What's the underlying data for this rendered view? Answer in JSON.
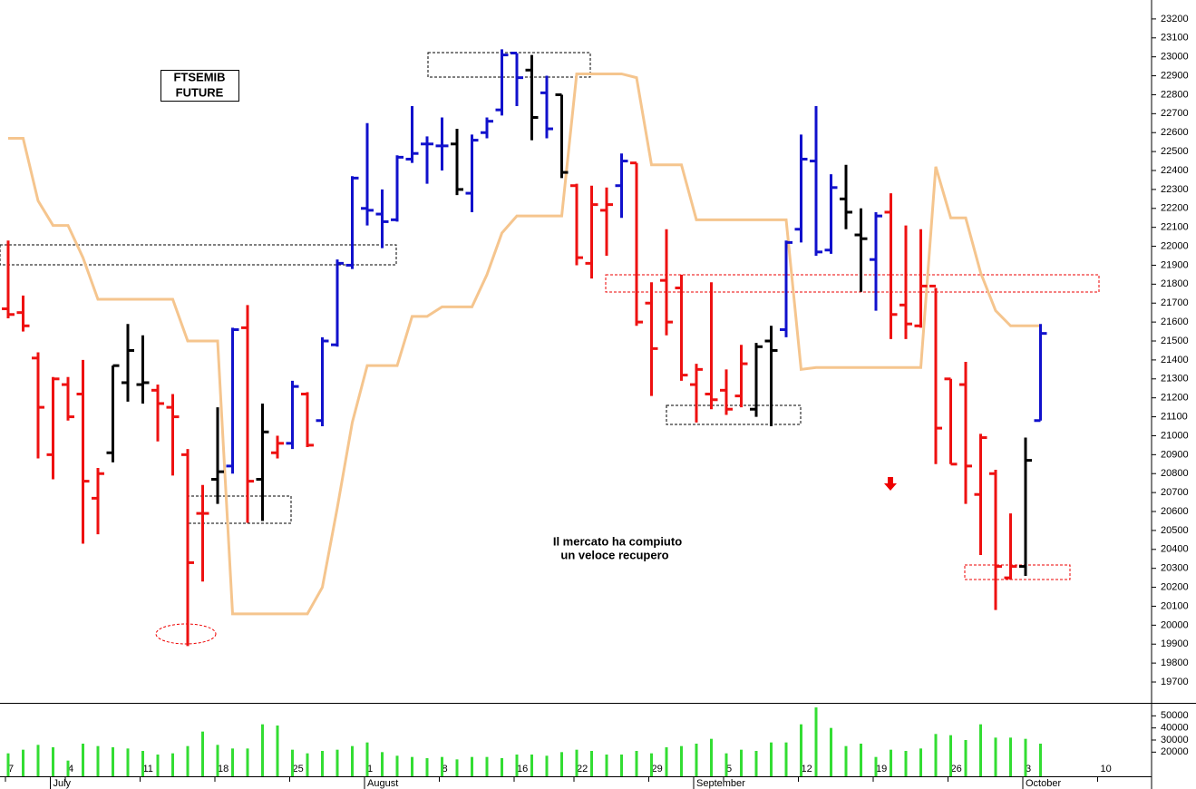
{
  "chart_data": {
    "type": "ohlc",
    "title_lines": [
      "FTSEMIB",
      "FUTURE"
    ],
    "annotation_lines": [
      "Il mercato ha compiuto",
      "un veloce recupero"
    ],
    "categories": [
      "7",
      null,
      null,
      null,
      "4",
      null,
      null,
      null,
      null,
      "11",
      null,
      null,
      null,
      null,
      "18",
      null,
      null,
      null,
      null,
      "25",
      null,
      null,
      null,
      null,
      "1",
      null,
      null,
      null,
      null,
      "8",
      null,
      null,
      null,
      null,
      "16",
      null,
      null,
      null,
      "22",
      null,
      null,
      null,
      null,
      "29",
      null,
      null,
      null,
      null,
      "5",
      null,
      null,
      null,
      null,
      "12",
      null,
      null,
      null,
      null,
      "19",
      null,
      null,
      null,
      null,
      "26",
      null,
      null,
      null,
      null,
      "3",
      null,
      null,
      null,
      null,
      "10",
      null,
      null,
      null
    ],
    "months": [
      null,
      null,
      null,
      "July",
      null,
      null,
      null,
      null,
      null,
      null,
      null,
      null,
      null,
      null,
      null,
      null,
      null,
      null,
      null,
      null,
      null,
      null,
      null,
      null,
      "August",
      null,
      null,
      null,
      null,
      null,
      null,
      null,
      null,
      null,
      null,
      null,
      null,
      null,
      null,
      null,
      null,
      null,
      null,
      null,
      null,
      null,
      "September",
      null,
      null,
      null,
      null,
      null,
      null,
      null,
      null,
      null,
      null,
      null,
      null,
      null,
      null,
      null,
      null,
      null,
      null,
      null,
      null,
      null,
      "October",
      null,
      null,
      null,
      null,
      null,
      null,
      null,
      null
    ],
    "open": [
      21670,
      21650,
      21410,
      20900,
      21270,
      21220,
      20670,
      20910,
      21280,
      21270,
      21240,
      21150,
      20900,
      20590,
      20770,
      20840,
      21570,
      20770,
      20910,
      20960,
      21220,
      21080,
      21480,
      21900,
      22200,
      22170,
      22140,
      22460,
      22540,
      22530,
      22540,
      22280,
      22600,
      22720,
      23020,
      22930,
      22810,
      22800,
      22320,
      21910,
      22190,
      22320,
      22440,
      21700,
      21820,
      21780,
      21270,
      21220,
      21240,
      21210,
      21140,
      21500,
      21560,
      22090,
      22450,
      21980,
      22250,
      22060,
      21930,
      22180,
      21690,
      21580,
      21790,
      21300,
      21270,
      20690,
      20800,
      20250,
      20310,
      21080,
      null,
      null,
      null,
      null,
      null,
      null,
      null
    ],
    "high": [
      22030,
      21740,
      21440,
      21310,
      21310,
      21400,
      20830,
      21370,
      21590,
      21530,
      21270,
      21220,
      20930,
      20740,
      21150,
      21570,
      21690,
      21170,
      21000,
      21290,
      21230,
      21520,
      21930,
      22370,
      22650,
      22300,
      22480,
      22740,
      22580,
      22680,
      22620,
      22590,
      22680,
      23040,
      23020,
      23010,
      22900,
      22800,
      22330,
      22320,
      22310,
      22490,
      22440,
      21810,
      22090,
      21850,
      21380,
      21810,
      21350,
      21480,
      21490,
      21580,
      22030,
      22590,
      22740,
      22380,
      22430,
      22200,
      22180,
      22280,
      22110,
      22090,
      21780,
      21300,
      21390,
      21010,
      20820,
      20590,
      20990,
      21590,
      null,
      null,
      null,
      null,
      null,
      null,
      null
    ],
    "low": [
      21620,
      21550,
      20880,
      20770,
      21080,
      20430,
      20480,
      20860,
      21180,
      21170,
      20970,
      20790,
      19890,
      20230,
      20640,
      20800,
      20540,
      20550,
      20880,
      20930,
      20940,
      21050,
      21470,
      21880,
      22110,
      21990,
      22130,
      22440,
      22330,
      22400,
      22270,
      22180,
      22570,
      22690,
      22740,
      22560,
      22570,
      22360,
      21900,
      21830,
      21950,
      22150,
      21580,
      21210,
      21530,
      21290,
      21070,
      21140,
      21110,
      21150,
      21100,
      21050,
      21520,
      22020,
      21950,
      21960,
      22090,
      21760,
      21660,
      21510,
      21510,
      21570,
      20850,
      20850,
      20640,
      20370,
      20080,
      20240,
      20260,
      21080,
      null,
      null,
      null,
      null,
      null,
      null,
      null
    ],
    "close": [
      21640,
      21580,
      21150,
      21300,
      21100,
      20760,
      20800,
      21370,
      21450,
      21280,
      21170,
      21100,
      20330,
      20590,
      20810,
      21560,
      20760,
      21020,
      20960,
      21260,
      20950,
      21500,
      21910,
      22360,
      22190,
      22130,
      22470,
      22490,
      22540,
      22530,
      22300,
      22560,
      22660,
      23010,
      22890,
      22680,
      22620,
      22390,
      21940,
      22220,
      22220,
      22450,
      21600,
      21460,
      21600,
      21320,
      21350,
      21190,
      21140,
      21380,
      21470,
      21450,
      22020,
      22460,
      21970,
      22310,
      22180,
      22040,
      22160,
      21640,
      21590,
      21790,
      21040,
      20850,
      20840,
      20990,
      20310,
      20310,
      20870,
      21540,
      null,
      null,
      null,
      null,
      null,
      null,
      null
    ],
    "colors": [
      "#ee1111",
      "#ee1111",
      "#ee1111",
      "#ee1111",
      "#ee1111",
      "#ee1111",
      "#ee1111",
      "#000000",
      "#000000",
      "#000000",
      "#ee1111",
      "#ee1111",
      "#ee1111",
      "#ee1111",
      "#000000",
      "#1111cc",
      "#ee1111",
      "#000000",
      "#ee1111",
      "#1111cc",
      "#ee1111",
      "#1111cc",
      "#1111cc",
      "#1111cc",
      "#1111cc",
      "#1111cc",
      "#1111cc",
      "#1111cc",
      "#1111cc",
      "#1111cc",
      "#000000",
      "#1111cc",
      "#1111cc",
      "#1111cc",
      "#1111cc",
      "#000000",
      "#1111cc",
      "#000000",
      "#ee1111",
      "#ee1111",
      "#ee1111",
      "#1111cc",
      "#ee1111",
      "#ee1111",
      "#ee1111",
      "#ee1111",
      "#ee1111",
      "#ee1111",
      "#ee1111",
      "#ee1111",
      "#000000",
      "#000000",
      "#1111cc",
      "#1111cc",
      "#1111cc",
      "#1111cc",
      "#000000",
      "#000000",
      "#1111cc",
      "#ee1111",
      "#ee1111",
      "#ee1111",
      "#ee1111",
      "#ee1111",
      "#ee1111",
      "#ee1111",
      "#ee1111",
      "#ee1111",
      "#000000",
      "#1111cc",
      null,
      null,
      null,
      null,
      null,
      null,
      null
    ],
    "line": {
      "color": "#f5c58e",
      "values": [
        22570,
        22570,
        22240,
        22110,
        22110,
        21940,
        21720,
        21720,
        21720,
        21720,
        21720,
        21720,
        21500,
        21500,
        21500,
        20060,
        20060,
        20060,
        20060,
        20060,
        20060,
        20200,
        20620,
        21070,
        21370,
        21370,
        21370,
        21630,
        21630,
        21680,
        21680,
        21680,
        21850,
        22070,
        22160,
        22160,
        22160,
        22160,
        22910,
        22910,
        22910,
        22910,
        22890,
        22430,
        22430,
        22430,
        22140,
        22140,
        22140,
        22140,
        22140,
        22140,
        22140,
        21350,
        21360,
        21360,
        21360,
        21360,
        21360,
        21360,
        21360,
        21360,
        22420,
        22150,
        22150,
        21860,
        21660,
        21580,
        21580,
        21580,
        null,
        null,
        null,
        null,
        null,
        null,
        null
      ]
    },
    "volume": {
      "color": "#33dd33",
      "values": [
        19000,
        22000,
        26000,
        24000,
        13000,
        27000,
        25000,
        24000,
        23000,
        21000,
        18000,
        19000,
        25000,
        37000,
        26000,
        23000,
        23000,
        43000,
        42000,
        22000,
        19000,
        21000,
        22000,
        25000,
        28000,
        20000,
        17000,
        16000,
        15000,
        16000,
        14000,
        16000,
        16000,
        15000,
        18000,
        18000,
        17000,
        20000,
        22000,
        21000,
        18000,
        18000,
        21000,
        19000,
        24000,
        25000,
        27000,
        31000,
        19000,
        22000,
        21000,
        28000,
        28000,
        43000,
        57000,
        40000,
        25000,
        27000,
        16000,
        22000,
        21000,
        23000,
        35000,
        34000,
        30000,
        43000,
        32000,
        32000,
        31000,
        27000,
        null,
        null,
        null,
        null,
        null,
        null,
        null
      ],
      "ylim": [
        0,
        60000
      ],
      "yticks": [
        20000,
        30000,
        40000,
        50000
      ]
    },
    "ylim": [
      19590,
      23300
    ],
    "yticks": [
      19700,
      19800,
      19900,
      20000,
      20100,
      20200,
      20300,
      20400,
      20500,
      20600,
      20700,
      20800,
      20900,
      21000,
      21100,
      21200,
      21300,
      21400,
      21500,
      21600,
      21700,
      21800,
      21900,
      22000,
      22100,
      22200,
      22300,
      22400,
      22500,
      22600,
      22700,
      22800,
      22900,
      23000,
      23100,
      23200
    ]
  }
}
